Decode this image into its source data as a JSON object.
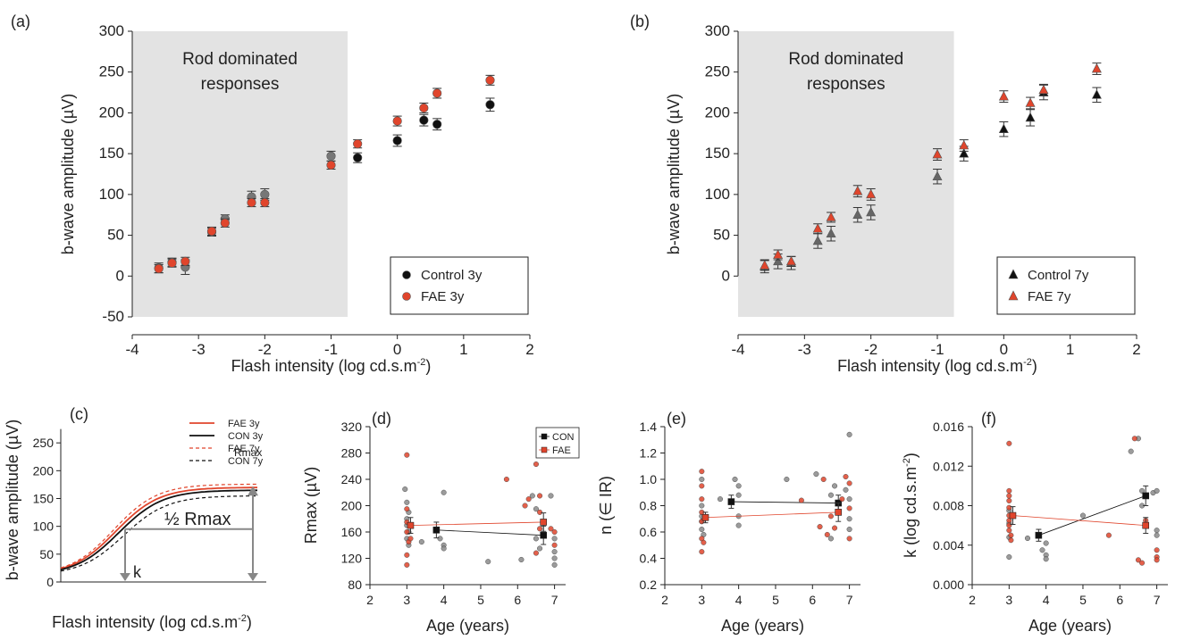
{
  "chart_data": [
    {
      "id": "a",
      "type": "scatter",
      "panel_label": "(a)",
      "xlabel": "Flash intensity (log cd.s.m",
      "xlabel_sup": "-2",
      "xlabel_end": ")",
      "ylabel": "b-wave amplitude (µV)",
      "xlim": [
        -4,
        2
      ],
      "ylim": [
        -50,
        300
      ],
      "xticks": [
        -4,
        -3,
        -2,
        -1,
        0,
        1,
        2
      ],
      "yticks": [
        -50,
        0,
        50,
        100,
        150,
        200,
        250,
        300
      ],
      "shaded_region": {
        "x": [
          -4,
          -0.75
        ],
        "text": [
          "Rod dominated",
          "responses"
        ]
      },
      "legend": "bottom-right",
      "grid": false,
      "series": [
        {
          "name": "Control 3y",
          "marker": "circle",
          "color": "#111111",
          "rod_color": "#777777",
          "points": [
            [
              -3.6,
              10,
              6
            ],
            [
              -3.4,
              17,
              5
            ],
            [
              -3.2,
              11,
              9
            ],
            [
              -2.8,
              54,
              5
            ],
            [
              -2.6,
              70,
              5
            ],
            [
              -2.2,
              97,
              7
            ],
            [
              -2.0,
              100,
              7
            ],
            [
              -1.0,
              147,
              6
            ],
            [
              -0.6,
              145,
              6
            ],
            [
              0.0,
              166,
              7
            ],
            [
              0.4,
              191,
              7
            ],
            [
              0.6,
              186,
              7
            ],
            [
              1.4,
              210,
              8
            ]
          ]
        },
        {
          "name": "FAE 3y",
          "marker": "circle",
          "color": "#e0452c",
          "points": [
            [
              -3.6,
              9,
              5
            ],
            [
              -3.4,
              16,
              5
            ],
            [
              -3.2,
              18,
              5
            ],
            [
              -2.8,
              55,
              5
            ],
            [
              -2.6,
              65,
              5
            ],
            [
              -2.2,
              90,
              5
            ],
            [
              -2.0,
              90,
              5
            ],
            [
              -1.0,
              136,
              5
            ],
            [
              -0.6,
              162,
              5
            ],
            [
              0.0,
              190,
              6
            ],
            [
              0.4,
              206,
              6
            ],
            [
              0.6,
              224,
              6
            ],
            [
              1.4,
              240,
              6
            ]
          ]
        }
      ]
    },
    {
      "id": "b",
      "type": "scatter",
      "panel_label": "(b)",
      "xlabel": "Flash intensity (log cd.s.m",
      "xlabel_sup": "-2",
      "xlabel_end": ")",
      "ylabel": "b-wave amplitude (µV)",
      "xlim": [
        -4,
        2
      ],
      "ylim": [
        -50,
        300
      ],
      "xticks": [
        -4,
        -3,
        -2,
        -1,
        0,
        1,
        2
      ],
      "yticks": [
        0,
        50,
        100,
        150,
        200,
        250,
        300
      ],
      "shaded_region": {
        "x": [
          -4,
          -0.75
        ],
        "text": [
          "Rod dominated",
          "responses"
        ]
      },
      "legend": "bottom-right",
      "grid": false,
      "series": [
        {
          "name": "Control 7y",
          "marker": "triangle",
          "color": "#111111",
          "rod_color": "#666666",
          "points": [
            [
              -3.6,
              12,
              8
            ],
            [
              -3.4,
              18,
              9
            ],
            [
              -3.2,
              16,
              8
            ],
            [
              -2.8,
              43,
              9
            ],
            [
              -2.6,
              52,
              9
            ],
            [
              -2.2,
              75,
              9
            ],
            [
              -2.0,
              78,
              9
            ],
            [
              -1.0,
              122,
              9
            ],
            [
              -0.6,
              150,
              9
            ],
            [
              0.0,
              180,
              9
            ],
            [
              0.4,
              194,
              10
            ],
            [
              0.6,
              225,
              9
            ],
            [
              1.4,
              222,
              9
            ]
          ]
        },
        {
          "name": "FAE 7y",
          "marker": "triangle",
          "color": "#e0452c",
          "points": [
            [
              -3.6,
              13,
              6
            ],
            [
              -3.4,
              26,
              6
            ],
            [
              -3.2,
              18,
              6
            ],
            [
              -2.8,
              58,
              6
            ],
            [
              -2.6,
              72,
              6
            ],
            [
              -2.2,
              104,
              7
            ],
            [
              -2.0,
              100,
              7
            ],
            [
              -1.0,
              149,
              7
            ],
            [
              -0.6,
              160,
              7
            ],
            [
              0.0,
              220,
              7
            ],
            [
              0.4,
              212,
              7
            ],
            [
              0.6,
              228,
              7
            ],
            [
              1.4,
              254,
              7
            ]
          ]
        }
      ]
    },
    {
      "id": "c",
      "type": "line",
      "panel_label": "(c)",
      "xlabel": "Flash intensity (log cd.s.m",
      "xlabel_sup": "-2",
      "xlabel_end": ")",
      "ylabel": "b-wave amplitude (µV)",
      "ylim": [
        0,
        300
      ],
      "yticks": [
        0,
        50,
        100,
        150,
        200,
        250
      ],
      "legend": "top-right",
      "annotations": {
        "rmax": "Rmax",
        "half_rmax": "½ Rmax",
        "k": "k"
      },
      "series": [
        {
          "name": "FAE 3y",
          "color": "#e0452c",
          "dash": "solid",
          "rmax": 170
        },
        {
          "name": "CON 3y",
          "color": "#111111",
          "dash": "solid",
          "rmax": 165
        },
        {
          "name": "FAE 7y",
          "color": "#e0452c",
          "dash": "dashed",
          "rmax": 176
        },
        {
          "name": "CON 7y",
          "color": "#111111",
          "dash": "dashed",
          "rmax": 155
        }
      ]
    },
    {
      "id": "d",
      "type": "scatter",
      "panel_label": "(d)",
      "xlabel": "Age (years)",
      "ylabel": "Rmax  (µV)",
      "xlim": [
        2,
        7.3
      ],
      "ylim": [
        80,
        320
      ],
      "xticks": [
        2,
        3,
        4,
        5,
        6,
        7
      ],
      "yticks": [
        80,
        120,
        160,
        200,
        240,
        280,
        320
      ],
      "legend": "top-right",
      "series": [
        {
          "name": "CON",
          "color": "#111111",
          "mean": [
            [
              3.8,
              163,
              12
            ],
            [
              6.7,
              155,
              14
            ]
          ],
          "points": [
            [
              2.95,
              225
            ],
            [
              3.0,
              205
            ],
            [
              3.05,
              190
            ],
            [
              3.0,
              180
            ],
            [
              3.0,
              170
            ],
            [
              3.05,
              160
            ],
            [
              3.0,
              150
            ],
            [
              3.05,
              140
            ],
            [
              3.4,
              145
            ],
            [
              3.9,
              150
            ],
            [
              4.0,
              220
            ],
            [
              4.0,
              140
            ],
            [
              4.0,
              135
            ],
            [
              5.2,
              115
            ],
            [
              6.1,
              118
            ],
            [
              6.4,
              215
            ],
            [
              6.5,
              195
            ],
            [
              6.5,
              150
            ],
            [
              6.6,
              135
            ],
            [
              6.9,
              215
            ],
            [
              7.0,
              150
            ],
            [
              7.0,
              130
            ],
            [
              7.0,
              120
            ],
            [
              7.0,
              110
            ]
          ]
        },
        {
          "name": "FAE",
          "color": "#e0452c",
          "mean": [
            [
              3.1,
              170,
              12
            ],
            [
              6.7,
              175,
              14
            ]
          ],
          "points": [
            [
              3.0,
              277
            ],
            [
              3.0,
              195
            ],
            [
              3.0,
              175
            ],
            [
              3.0,
              160
            ],
            [
              3.05,
              145
            ],
            [
              3.0,
              125
            ],
            [
              3.0,
              110
            ],
            [
              3.1,
              150
            ],
            [
              5.7,
              240
            ],
            [
              6.2,
              200
            ],
            [
              6.3,
              210
            ],
            [
              6.5,
              263
            ],
            [
              6.6,
              215
            ],
            [
              6.6,
              190
            ],
            [
              6.6,
              165
            ],
            [
              6.5,
              128
            ],
            [
              6.9,
              165
            ],
            [
              7.0,
              160
            ],
            [
              7.0,
              140
            ]
          ]
        }
      ]
    },
    {
      "id": "e",
      "type": "scatter",
      "panel_label": "(e)",
      "xlabel": "Age (years)",
      "ylabel": "n (∈ IR)",
      "xlim": [
        2,
        7.3
      ],
      "ylim": [
        0.2,
        1.4
      ],
      "xticks": [
        2,
        3,
        4,
        5,
        6,
        7
      ],
      "yticks": [
        "0.2",
        "0.4",
        "0.6",
        "0.8",
        "1.0",
        "1.2",
        "1.4"
      ],
      "series": [
        {
          "name": "CON",
          "color": "#111111",
          "mean": [
            [
              3.8,
              0.83,
              0.05
            ],
            [
              6.7,
              0.82,
              0.06
            ]
          ],
          "points": [
            [
              3.0,
              1.0
            ],
            [
              3.0,
              0.8
            ],
            [
              3.0,
              0.72
            ],
            [
              3.0,
              0.68
            ],
            [
              3.0,
              0.62
            ],
            [
              3.05,
              0.58
            ],
            [
              3.5,
              0.85
            ],
            [
              3.9,
              1.0
            ],
            [
              4.0,
              0.95
            ],
            [
              4.0,
              0.88
            ],
            [
              4.0,
              0.72
            ],
            [
              4.0,
              0.65
            ],
            [
              5.3,
              1.0
            ],
            [
              6.1,
              1.04
            ],
            [
              6.5,
              0.88
            ],
            [
              6.6,
              0.95
            ],
            [
              6.5,
              0.55
            ],
            [
              6.9,
              0.92
            ],
            [
              7.0,
              1.34
            ],
            [
              7.0,
              0.85
            ],
            [
              7.0,
              0.7
            ],
            [
              7.0,
              0.62
            ]
          ]
        },
        {
          "name": "FAE",
          "color": "#e0452c",
          "mean": [
            [
              3.1,
              0.71,
              0.04
            ],
            [
              6.7,
              0.75,
              0.07
            ]
          ],
          "points": [
            [
              3.0,
              1.06
            ],
            [
              3.0,
              0.95
            ],
            [
              3.0,
              0.85
            ],
            [
              3.0,
              0.75
            ],
            [
              3.0,
              0.68
            ],
            [
              3.0,
              0.55
            ],
            [
              3.0,
              0.45
            ],
            [
              3.05,
              0.52
            ],
            [
              5.7,
              0.84
            ],
            [
              6.2,
              0.64
            ],
            [
              6.3,
              1.0
            ],
            [
              6.4,
              0.58
            ],
            [
              6.5,
              0.72
            ],
            [
              6.6,
              0.63
            ],
            [
              6.8,
              0.85
            ],
            [
              6.9,
              1.02
            ],
            [
              7.0,
              0.97
            ],
            [
              7.0,
              0.55
            ],
            [
              7.0,
              0.78
            ]
          ]
        }
      ]
    },
    {
      "id": "f",
      "type": "scatter",
      "panel_label": "(f)",
      "xlabel": "Age (years)",
      "ylabel": "k (log cd.s.m",
      "ylabel_sup": "-2",
      "ylabel_end": ")",
      "xlim": [
        2,
        7.3
      ],
      "ylim": [
        0,
        0.016
      ],
      "xticks": [
        2,
        3,
        4,
        5,
        6,
        7
      ],
      "yticks": [
        "0.000",
        "0.004",
        "0.008",
        "0.012",
        "0.016"
      ],
      "series": [
        {
          "name": "CON",
          "color": "#111111",
          "mean": [
            [
              3.8,
              0.005,
              0.0006
            ],
            [
              6.7,
              0.009,
              0.001
            ]
          ],
          "points": [
            [
              3.0,
              0.0075
            ],
            [
              3.0,
              0.0062
            ],
            [
              3.0,
              0.0048
            ],
            [
              3.0,
              0.0028
            ],
            [
              3.5,
              0.0047
            ],
            [
              3.9,
              0.0035
            ],
            [
              4.0,
              0.0042
            ],
            [
              4.0,
              0.003
            ],
            [
              4.0,
              0.0026
            ],
            [
              5.0,
              0.007
            ],
            [
              6.3,
              0.0135
            ],
            [
              6.5,
              0.0148
            ],
            [
              6.6,
              0.0095
            ],
            [
              6.6,
              0.008
            ],
            [
              6.9,
              0.0093
            ],
            [
              7.0,
              0.0095
            ],
            [
              7.0,
              0.0055
            ],
            [
              7.0,
              0.005
            ]
          ]
        },
        {
          "name": "FAE",
          "color": "#e0452c",
          "mean": [
            [
              3.1,
              0.007,
              0.0009
            ],
            [
              6.7,
              0.006,
              0.0008
            ]
          ],
          "points": [
            [
              3.0,
              0.0143
            ],
            [
              3.0,
              0.0095
            ],
            [
              3.0,
              0.009
            ],
            [
              3.0,
              0.0085
            ],
            [
              3.0,
              0.0078
            ],
            [
              3.0,
              0.007
            ],
            [
              3.0,
              0.0065
            ],
            [
              3.0,
              0.006
            ],
            [
              3.0,
              0.0055
            ],
            [
              3.05,
              0.005
            ],
            [
              3.05,
              0.0045
            ],
            [
              5.7,
              0.005
            ],
            [
              6.4,
              0.0148
            ],
            [
              6.5,
              0.0025
            ],
            [
              6.6,
              0.0022
            ],
            [
              6.7,
              0.0065
            ],
            [
              7.0,
              0.0035
            ],
            [
              7.0,
              0.0028
            ],
            [
              7.0,
              0.0025
            ]
          ]
        }
      ]
    }
  ]
}
